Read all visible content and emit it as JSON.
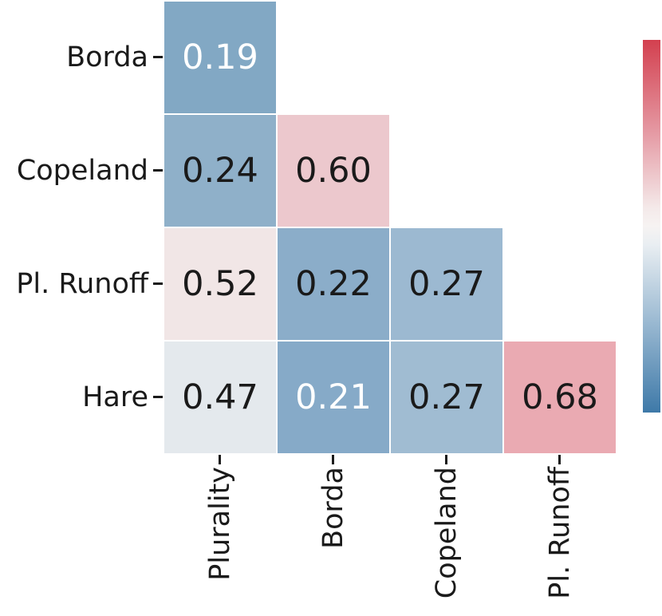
{
  "chart_data": {
    "type": "heatmap",
    "title": "",
    "xlabel": "",
    "ylabel": "",
    "rows": [
      "Borda",
      "Copeland",
      "Pl. Runoff",
      "Hare"
    ],
    "columns": [
      "Plurality",
      "Borda",
      "Copeland",
      "Pl. Runoff"
    ],
    "values": [
      [
        0.19,
        null,
        null,
        null
      ],
      [
        0.24,
        0.6,
        null,
        null
      ],
      [
        0.52,
        0.22,
        0.27,
        null
      ],
      [
        0.47,
        0.21,
        0.27,
        0.68
      ]
    ],
    "cell_labels": [
      [
        "0.19",
        null,
        null,
        null
      ],
      [
        "0.24",
        "0.60",
        null,
        null
      ],
      [
        "0.52",
        "0.22",
        "0.27",
        null
      ],
      [
        "0.47",
        "0.21",
        "0.27",
        "0.68"
      ]
    ],
    "cell_colors": [
      [
        "#82a8c4",
        null,
        null,
        null
      ],
      [
        "#8fb0c9",
        "#ecc8cd",
        null,
        null
      ],
      [
        "#f1e6e6",
        "#8badc9",
        "#9cb9d1",
        null
      ],
      [
        "#e4e9ed",
        "#86aac8",
        "#a0bcd2",
        "#eaaab2"
      ]
    ],
    "text_colors": [
      [
        "#ffffff",
        null,
        null,
        null
      ],
      [
        "#1a1a1a",
        "#1a1a1a",
        null,
        null
      ],
      [
        "#1a1a1a",
        "#1a1a1a",
        "#1a1a1a",
        null
      ],
      [
        "#1a1a1a",
        "#ffffff",
        "#1a1a1a",
        "#1a1a1a"
      ]
    ],
    "mask": "upper-triangle-hidden",
    "grid": false,
    "legend": "none",
    "annotation_precision": 2,
    "colorbar": {
      "position": "right",
      "orientation": "vertical",
      "tick_labels": [],
      "gradient_stops": [
        {
          "pos": 0,
          "color": "#d3404f"
        },
        {
          "pos": 25,
          "color": "#e59aa4"
        },
        {
          "pos": 45,
          "color": "#f4e9e9"
        },
        {
          "pos": 50,
          "color": "#f6f3f2"
        },
        {
          "pos": 55,
          "color": "#e9eef2"
        },
        {
          "pos": 75,
          "color": "#9dbbd3"
        },
        {
          "pos": 100,
          "color": "#3e79a8"
        }
      ]
    },
    "tick_color": "#1a1a1a"
  }
}
